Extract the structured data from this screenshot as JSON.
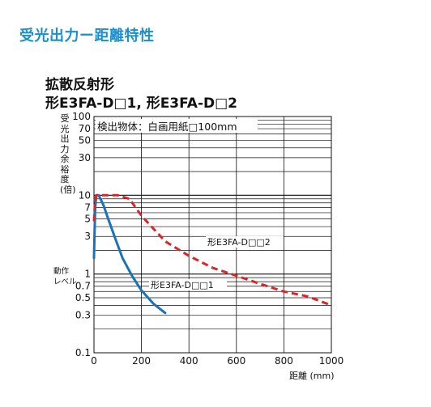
{
  "header": {
    "section_title": "受光出力ー距離特性"
  },
  "chart_data": {
    "type": "line",
    "title_line1": "拡散反射形",
    "title_line2": "形E3FA-D□1, 形E3FA-D□2",
    "ylabel": "受光出力余裕度(倍)",
    "xlabel": "距離 (mm)",
    "note": "検出物体：白画用紙□100mm",
    "operating_level_label": [
      "動作",
      "レベル"
    ],
    "y_scale": "log",
    "xlim": [
      0,
      1000
    ],
    "ylim": [
      0.1,
      100
    ],
    "x_ticks": [
      0,
      200,
      400,
      600,
      800,
      1000
    ],
    "y_ticks": [
      0.1,
      0.3,
      0.5,
      0.7,
      1,
      3,
      5,
      7,
      10,
      30,
      50,
      70,
      100
    ],
    "y_tick_labels": [
      "0.1",
      "0.3",
      "0.5",
      "0.7",
      "1",
      "3",
      "5",
      "7",
      "10",
      "30",
      "50",
      "70",
      "100"
    ],
    "grid": true,
    "series": [
      {
        "name": "形E3FA-D□□1",
        "color": "#1a73b8",
        "style": "solid",
        "points": [
          [
            0,
            1.6
          ],
          [
            2,
            3
          ],
          [
            5,
            7
          ],
          [
            10,
            10
          ],
          [
            20,
            10
          ],
          [
            40,
            7.5
          ],
          [
            60,
            5
          ],
          [
            90,
            2.8
          ],
          [
            120,
            1.6
          ],
          [
            160,
            0.95
          ],
          [
            200,
            0.62
          ],
          [
            250,
            0.42
          ],
          [
            300,
            0.32
          ]
        ]
      },
      {
        "name": "形E3FA-D□□2",
        "color": "#d9262b",
        "style": "dashed",
        "points": [
          [
            0,
            4.7
          ],
          [
            5,
            9
          ],
          [
            10,
            10
          ],
          [
            30,
            10
          ],
          [
            100,
            10
          ],
          [
            150,
            9
          ],
          [
            200,
            5.5
          ],
          [
            300,
            2.6
          ],
          [
            400,
            1.7
          ],
          [
            500,
            1.2
          ],
          [
            600,
            0.95
          ],
          [
            700,
            0.75
          ],
          [
            800,
            0.6
          ],
          [
            900,
            0.52
          ],
          [
            1000,
            0.4
          ]
        ]
      }
    ]
  },
  "labels": {
    "series1": "形E3FA-D□□1",
    "series2": "形E3FA-D□□2"
  }
}
